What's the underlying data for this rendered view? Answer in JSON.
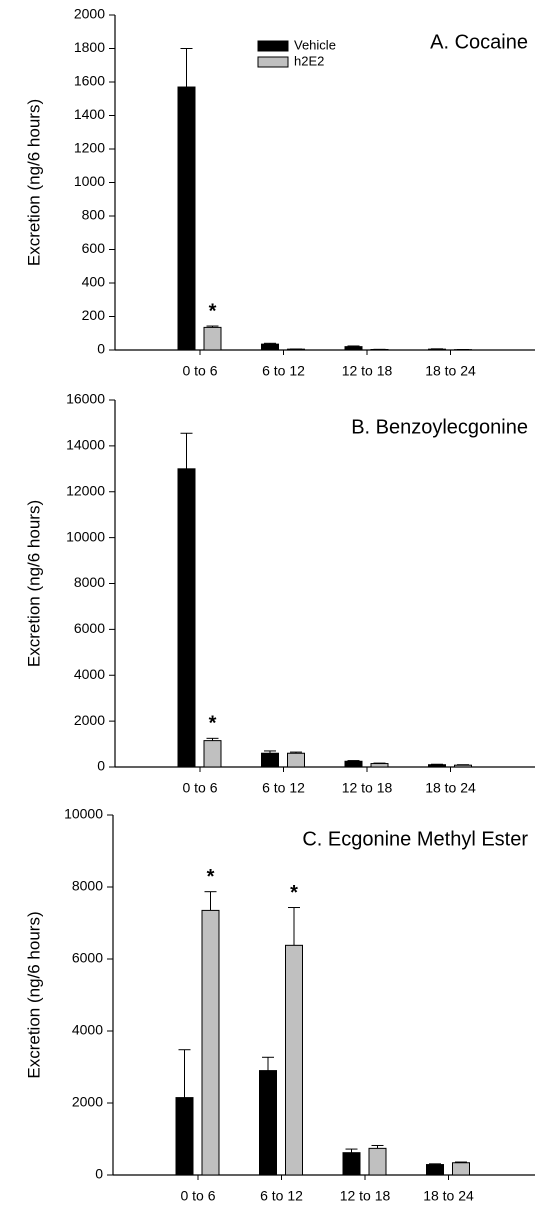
{
  "chart_data": [
    {
      "type": "bar",
      "title": "A. Cocaine",
      "y_label": "Excretion (ng/6 hours)",
      "categories": [
        "0 to 6",
        "6 to 12",
        "12 to 18",
        "18 to 24"
      ],
      "series": [
        {
          "name": "Vehicle",
          "color": "#000000",
          "values": [
            1570,
            35,
            20,
            5
          ],
          "errors": [
            230,
            5,
            4,
            2
          ]
        },
        {
          "name": "h2E2",
          "color": "#c0c0c0",
          "values": [
            135,
            5,
            3,
            2
          ],
          "errors": [
            8,
            1,
            1,
            1
          ]
        }
      ],
      "annotations": [
        {
          "text": "*",
          "category": 0,
          "series": 1
        }
      ],
      "legend": true,
      "ylim": [
        0,
        2000
      ],
      "yticks": [
        0,
        200,
        400,
        600,
        800,
        1000,
        1200,
        1400,
        1600,
        1800,
        2000
      ]
    },
    {
      "type": "bar",
      "title": "B. Benzoylecgonine",
      "y_label": "Excretion (ng/6 hours)",
      "categories": [
        "0 to 6",
        "6 to 12",
        "12 to 18",
        "18 to 24"
      ],
      "series": [
        {
          "color": "#000000",
          "values": [
            13000,
            600,
            250,
            100
          ],
          "errors": [
            1550,
            100,
            30,
            20
          ]
        },
        {
          "color": "#c0c0c0",
          "values": [
            1150,
            600,
            150,
            80
          ],
          "errors": [
            100,
            50,
            20,
            20
          ]
        }
      ],
      "annotations": [
        {
          "text": "*",
          "category": 0,
          "series": 1
        }
      ],
      "legend": false,
      "ylim": [
        0,
        16000
      ],
      "yticks": [
        0,
        2000,
        4000,
        6000,
        8000,
        10000,
        12000,
        14000,
        16000
      ]
    },
    {
      "type": "bar",
      "title": "C. Ecgonine Methyl Ester",
      "y_label": "Excretion (ng/6 hours)",
      "categories": [
        "0 to 6",
        "6 to 12",
        "12 to 18",
        "18 to 24"
      ],
      "series": [
        {
          "color": "#000000",
          "values": [
            2150,
            2900,
            620,
            290
          ],
          "errors": [
            1330,
            370,
            100,
            20
          ]
        },
        {
          "color": "#c0c0c0",
          "values": [
            7350,
            6380,
            740,
            340
          ],
          "errors": [
            520,
            1050,
            80,
            20
          ]
        }
      ],
      "annotations": [
        {
          "text": "*",
          "category": 0,
          "series": 1
        },
        {
          "text": "*",
          "category": 1,
          "series": 1
        }
      ],
      "legend": false,
      "ylim": [
        0,
        10000
      ],
      "yticks": [
        0,
        2000,
        4000,
        6000,
        8000,
        10000
      ]
    }
  ]
}
